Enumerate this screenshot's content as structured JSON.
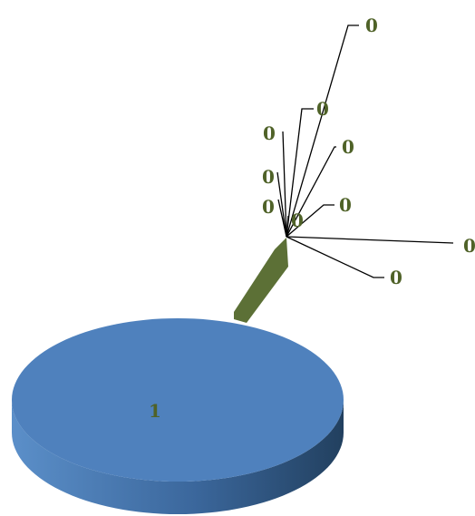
{
  "chart_data": {
    "type": "pie",
    "style": "3d-exploded",
    "slices": [
      {
        "label": "1",
        "value": 1
      },
      {
        "label": "0",
        "value": 0
      },
      {
        "label": "0",
        "value": 0
      },
      {
        "label": "0",
        "value": 0
      },
      {
        "label": "0",
        "value": 0
      },
      {
        "label": "0",
        "value": 0
      },
      {
        "label": "0",
        "value": 0
      },
      {
        "label": "0",
        "value": 0
      },
      {
        "label": "0",
        "value": 0
      },
      {
        "label": "0",
        "value": 0
      },
      {
        "label": "0",
        "value": 0
      }
    ],
    "colors": {
      "main_slice_top": "#4f81bd",
      "main_slice_side_dark": "#2c4d75",
      "main_slice_side_light": "#5b8fc9",
      "exploded_slice": "#5c7036",
      "label_text": "#4f6228",
      "leader_line": "#000000"
    }
  }
}
